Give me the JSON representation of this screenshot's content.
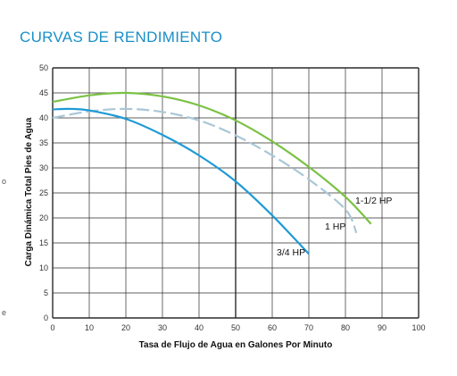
{
  "title": "CURVAS DE RENDIMIENTO",
  "edge_marks": [
    "o",
    "e"
  ],
  "chart_data": {
    "type": "line",
    "title": "CURVAS DE RENDIMIENTO",
    "xlabel": "Tasa de Flujo de Agua en Galones Por Minuto",
    "ylabel": "Carga Dinámica Total Pies de Agua",
    "xlim": [
      0,
      100
    ],
    "ylim": [
      0,
      50
    ],
    "x_ticks": [
      0,
      10,
      20,
      30,
      40,
      50,
      60,
      70,
      80,
      90,
      100
    ],
    "y_ticks": [
      0,
      5,
      10,
      15,
      20,
      25,
      30,
      35,
      40,
      45,
      50
    ],
    "grid": true,
    "series": [
      {
        "name": "1-1/2 HP",
        "color": "#7ac143",
        "dash": false,
        "x": [
          0,
          10,
          20,
          30,
          40,
          50,
          60,
          70,
          80,
          87
        ],
        "y": [
          43.2,
          44.5,
          45.0,
          44.3,
          42.5,
          39.5,
          35.3,
          30.2,
          24.2,
          18.8
        ]
      },
      {
        "name": "1 HP",
        "color": "#a9c7d6",
        "dash": true,
        "x": [
          0,
          10,
          20,
          30,
          40,
          50,
          60,
          70,
          80,
          83
        ],
        "y": [
          40.0,
          41.3,
          41.8,
          41.2,
          39.5,
          36.5,
          32.5,
          27.7,
          21.7,
          17.0
        ]
      },
      {
        "name": "3/4 HP",
        "color": "#1e9ad6",
        "dash": false,
        "x": [
          0,
          5,
          10,
          20,
          30,
          40,
          50,
          60,
          70
        ],
        "y": [
          41.7,
          41.8,
          41.5,
          39.8,
          36.6,
          32.5,
          27.3,
          20.5,
          12.8
        ]
      }
    ]
  }
}
